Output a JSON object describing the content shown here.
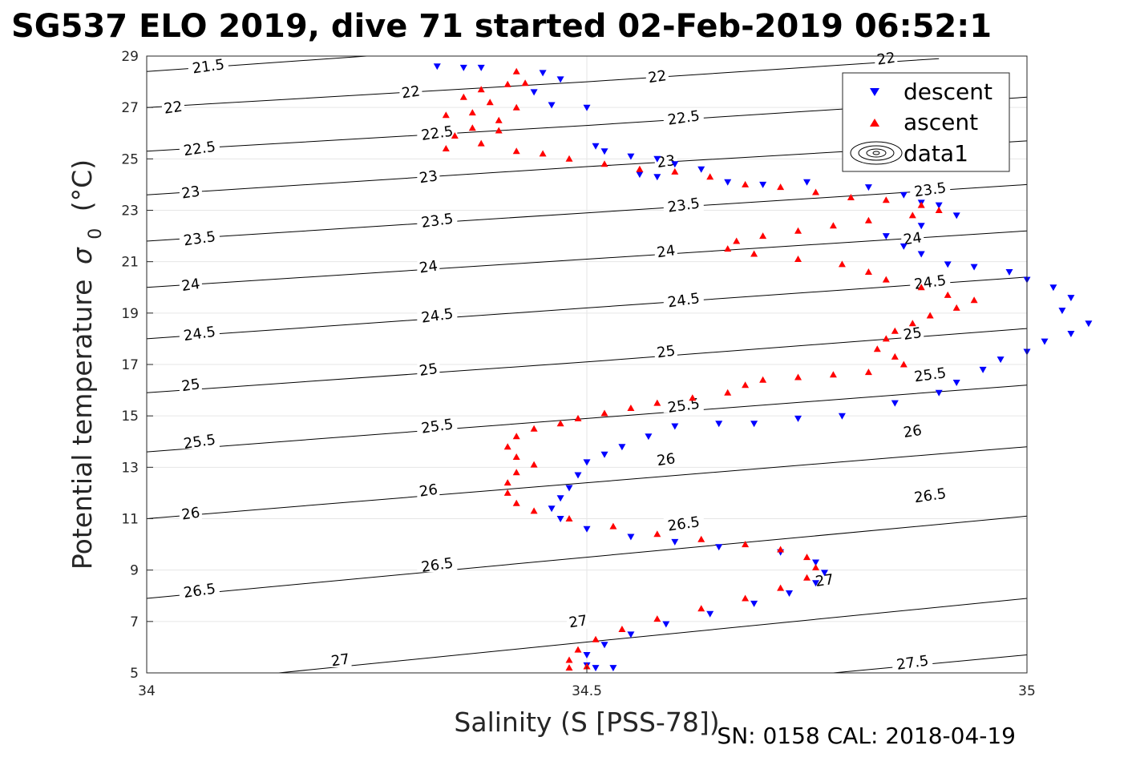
{
  "chart_data": {
    "type": "scatter",
    "title": "SG537 ELO 2019, dive 71 started 02-Feb-2019 06:52:1",
    "xlabel": "Salinity (S [PSS-78])",
    "ylabel": "Potential temperature",
    "ylabel_symbol": "σ",
    "ylabel_sub": "0",
    "ylabel_unit": "(°C)",
    "footer": "SN: 0158  CAL: 2018-04-19",
    "xlim": [
      34,
      35
    ],
    "ylim": [
      5,
      29
    ],
    "xticks": [
      34,
      34.5,
      35
    ],
    "xtick_labels": [
      "34",
      "34.5",
      "35"
    ],
    "yticks": [
      5,
      7,
      9,
      11,
      13,
      15,
      17,
      19,
      21,
      23,
      25,
      27,
      29
    ],
    "ytick_labels": [
      "5",
      "7",
      "9",
      "11",
      "13",
      "15",
      "17",
      "19",
      "21",
      "23",
      "25",
      "27",
      "29"
    ],
    "grid": true,
    "legend_position": "top-right",
    "series": [
      {
        "name": "descent",
        "marker": "triangle-down",
        "color": "#0000ff",
        "points": [
          [
            34.33,
            28.6
          ],
          [
            34.36,
            28.55
          ],
          [
            34.38,
            28.55
          ],
          [
            34.45,
            28.35
          ],
          [
            34.47,
            28.1
          ],
          [
            34.44,
            27.6
          ],
          [
            34.46,
            27.1
          ],
          [
            34.5,
            27.0
          ],
          [
            34.51,
            25.5
          ],
          [
            34.52,
            25.3
          ],
          [
            34.55,
            25.1
          ],
          [
            34.58,
            25.0
          ],
          [
            34.56,
            24.4
          ],
          [
            34.58,
            24.3
          ],
          [
            34.6,
            24.8
          ],
          [
            34.63,
            24.6
          ],
          [
            34.66,
            24.1
          ],
          [
            34.7,
            24.0
          ],
          [
            34.75,
            24.1
          ],
          [
            34.82,
            23.9
          ],
          [
            34.86,
            23.6
          ],
          [
            34.88,
            23.3
          ],
          [
            34.9,
            23.2
          ],
          [
            34.92,
            22.8
          ],
          [
            34.88,
            22.4
          ],
          [
            34.84,
            22.0
          ],
          [
            34.86,
            21.6
          ],
          [
            34.88,
            21.3
          ],
          [
            34.91,
            20.9
          ],
          [
            34.94,
            20.8
          ],
          [
            34.98,
            20.6
          ],
          [
            35.0,
            20.3
          ],
          [
            35.03,
            20.0
          ],
          [
            35.05,
            19.6
          ],
          [
            35.04,
            19.1
          ],
          [
            35.07,
            18.6
          ],
          [
            35.05,
            18.2
          ],
          [
            35.02,
            17.9
          ],
          [
            35.0,
            17.5
          ],
          [
            34.97,
            17.2
          ],
          [
            34.95,
            16.8
          ],
          [
            34.92,
            16.3
          ],
          [
            34.9,
            15.9
          ],
          [
            34.85,
            15.5
          ],
          [
            34.79,
            15.0
          ],
          [
            34.74,
            14.9
          ],
          [
            34.69,
            14.7
          ],
          [
            34.65,
            14.7
          ],
          [
            34.6,
            14.6
          ],
          [
            34.57,
            14.2
          ],
          [
            34.54,
            13.8
          ],
          [
            34.52,
            13.5
          ],
          [
            34.5,
            13.2
          ],
          [
            34.49,
            12.7
          ],
          [
            34.48,
            12.2
          ],
          [
            34.47,
            11.8
          ],
          [
            34.46,
            11.4
          ],
          [
            34.47,
            11.0
          ],
          [
            34.5,
            10.6
          ],
          [
            34.55,
            10.3
          ],
          [
            34.6,
            10.1
          ],
          [
            34.65,
            9.9
          ],
          [
            34.72,
            9.7
          ],
          [
            34.76,
            9.3
          ],
          [
            34.77,
            8.9
          ],
          [
            34.76,
            8.5
          ],
          [
            34.73,
            8.1
          ],
          [
            34.69,
            7.7
          ],
          [
            34.64,
            7.3
          ],
          [
            34.59,
            6.9
          ],
          [
            34.55,
            6.5
          ],
          [
            34.52,
            6.1
          ],
          [
            34.5,
            5.7
          ],
          [
            34.5,
            5.3
          ],
          [
            34.51,
            5.2
          ],
          [
            34.53,
            5.2
          ]
        ]
      },
      {
        "name": "ascent",
        "marker": "triangle-up",
        "color": "#ff0000",
        "points": [
          [
            34.42,
            28.4
          ],
          [
            34.41,
            27.9
          ],
          [
            34.43,
            27.95
          ],
          [
            34.38,
            27.7
          ],
          [
            34.36,
            27.4
          ],
          [
            34.39,
            27.2
          ],
          [
            34.42,
            27.0
          ],
          [
            34.37,
            26.8
          ],
          [
            34.34,
            26.7
          ],
          [
            34.4,
            26.5
          ],
          [
            34.37,
            26.2
          ],
          [
            34.4,
            26.1
          ],
          [
            34.35,
            25.9
          ],
          [
            34.38,
            25.6
          ],
          [
            34.34,
            25.4
          ],
          [
            34.42,
            25.3
          ],
          [
            34.45,
            25.2
          ],
          [
            34.48,
            25.0
          ],
          [
            34.52,
            24.8
          ],
          [
            34.56,
            24.6
          ],
          [
            34.6,
            24.5
          ],
          [
            34.64,
            24.3
          ],
          [
            34.68,
            24.0
          ],
          [
            34.72,
            23.9
          ],
          [
            34.76,
            23.7
          ],
          [
            34.8,
            23.5
          ],
          [
            34.84,
            23.4
          ],
          [
            34.88,
            23.2
          ],
          [
            34.9,
            23.0
          ],
          [
            34.87,
            22.8
          ],
          [
            34.82,
            22.6
          ],
          [
            34.78,
            22.4
          ],
          [
            34.74,
            22.2
          ],
          [
            34.7,
            22.0
          ],
          [
            34.67,
            21.8
          ],
          [
            34.66,
            21.5
          ],
          [
            34.69,
            21.3
          ],
          [
            34.74,
            21.1
          ],
          [
            34.79,
            20.9
          ],
          [
            34.82,
            20.6
          ],
          [
            34.84,
            20.3
          ],
          [
            34.88,
            20.0
          ],
          [
            34.91,
            19.7
          ],
          [
            34.94,
            19.5
          ],
          [
            34.92,
            19.2
          ],
          [
            34.89,
            18.9
          ],
          [
            34.87,
            18.6
          ],
          [
            34.85,
            18.3
          ],
          [
            34.84,
            18.0
          ],
          [
            34.83,
            17.6
          ],
          [
            34.85,
            17.3
          ],
          [
            34.86,
            17.0
          ],
          [
            34.82,
            16.7
          ],
          [
            34.78,
            16.6
          ],
          [
            34.74,
            16.5
          ],
          [
            34.7,
            16.4
          ],
          [
            34.68,
            16.2
          ],
          [
            34.66,
            15.9
          ],
          [
            34.62,
            15.7
          ],
          [
            34.58,
            15.5
          ],
          [
            34.55,
            15.3
          ],
          [
            34.52,
            15.1
          ],
          [
            34.49,
            14.9
          ],
          [
            34.47,
            14.7
          ],
          [
            34.44,
            14.5
          ],
          [
            34.42,
            14.2
          ],
          [
            34.41,
            13.8
          ],
          [
            34.42,
            13.4
          ],
          [
            34.44,
            13.1
          ],
          [
            34.42,
            12.8
          ],
          [
            34.41,
            12.4
          ],
          [
            34.41,
            12.0
          ],
          [
            34.42,
            11.6
          ],
          [
            34.44,
            11.3
          ],
          [
            34.48,
            11.0
          ],
          [
            34.53,
            10.7
          ],
          [
            34.58,
            10.4
          ],
          [
            34.63,
            10.2
          ],
          [
            34.68,
            10.0
          ],
          [
            34.72,
            9.8
          ],
          [
            34.75,
            9.5
          ],
          [
            34.76,
            9.1
          ],
          [
            34.75,
            8.7
          ],
          [
            34.72,
            8.3
          ],
          [
            34.68,
            7.9
          ],
          [
            34.63,
            7.5
          ],
          [
            34.58,
            7.1
          ],
          [
            34.54,
            6.7
          ],
          [
            34.51,
            6.3
          ],
          [
            34.49,
            5.9
          ],
          [
            34.48,
            5.5
          ],
          [
            34.48,
            5.2
          ],
          [
            34.5,
            5.25
          ]
        ]
      },
      {
        "name": "data1",
        "marker": "contour",
        "color": "#000000",
        "contours": [
          {
            "level": "21.5",
            "points": [
              [
                34.0,
                28.4
              ],
              [
                34.25,
                29.0
              ]
            ]
          },
          {
            "level": "22",
            "points": [
              [
                34.0,
                27.0
              ],
              [
                34.5,
                28.0
              ],
              [
                34.9,
                28.9
              ]
            ]
          },
          {
            "level": "22.5",
            "points": [
              [
                34.0,
                25.3
              ],
              [
                34.5,
                26.3
              ],
              [
                35.0,
                27.4
              ]
            ]
          },
          {
            "level": "23",
            "points": [
              [
                34.0,
                23.6
              ],
              [
                34.5,
                24.7
              ],
              [
                35.0,
                25.7
              ]
            ]
          },
          {
            "level": "23.5",
            "points": [
              [
                34.0,
                21.8
              ],
              [
                34.5,
                22.9
              ],
              [
                35.0,
                24.0
              ]
            ]
          },
          {
            "level": "24",
            "points": [
              [
                34.0,
                20.0
              ],
              [
                34.5,
                21.1
              ],
              [
                35.0,
                22.2
              ]
            ]
          },
          {
            "level": "24.5",
            "points": [
              [
                34.0,
                18.0
              ],
              [
                34.5,
                19.2
              ],
              [
                35.0,
                20.4
              ]
            ]
          },
          {
            "level": "25",
            "points": [
              [
                34.0,
                15.9
              ],
              [
                34.5,
                17.1
              ],
              [
                35.0,
                18.4
              ]
            ]
          },
          {
            "level": "25.5",
            "points": [
              [
                34.0,
                13.6
              ],
              [
                34.5,
                14.9
              ],
              [
                35.0,
                16.2
              ]
            ]
          },
          {
            "level": "26",
            "points": [
              [
                34.0,
                11.0
              ],
              [
                34.5,
                12.4
              ],
              [
                35.0,
                13.8
              ]
            ]
          },
          {
            "level": "26.5",
            "points": [
              [
                34.0,
                7.9
              ],
              [
                34.5,
                9.5
              ],
              [
                35.0,
                11.1
              ]
            ]
          },
          {
            "level": "27",
            "points": [
              [
                34.15,
                5.0
              ],
              [
                34.5,
                6.2
              ],
              [
                35.0,
                7.9
              ]
            ]
          },
          {
            "level": "27.5",
            "points": [
              [
                34.78,
                5.0
              ],
              [
                35.0,
                5.7
              ]
            ]
          }
        ],
        "labels": [
          {
            "text": "21.5",
            "x": 34.07,
            "y": 28.6
          },
          {
            "text": "22",
            "x": 34.03,
            "y": 27.0
          },
          {
            "text": "22",
            "x": 34.3,
            "y": 27.6
          },
          {
            "text": "22",
            "x": 34.58,
            "y": 28.2
          },
          {
            "text": "22",
            "x": 34.84,
            "y": 28.9
          },
          {
            "text": "22.5",
            "x": 34.06,
            "y": 25.4
          },
          {
            "text": "22.5",
            "x": 34.33,
            "y": 26.0
          },
          {
            "text": "22.5",
            "x": 34.61,
            "y": 26.6
          },
          {
            "text": "23",
            "x": 34.05,
            "y": 23.7
          },
          {
            "text": "23",
            "x": 34.32,
            "y": 24.3
          },
          {
            "text": "23",
            "x": 34.59,
            "y": 24.9
          },
          {
            "text": "23.5",
            "x": 34.06,
            "y": 21.9
          },
          {
            "text": "23.5",
            "x": 34.33,
            "y": 22.6
          },
          {
            "text": "23.5",
            "x": 34.61,
            "y": 23.2
          },
          {
            "text": "23.5",
            "x": 34.89,
            "y": 23.8
          },
          {
            "text": "24",
            "x": 34.05,
            "y": 20.1
          },
          {
            "text": "24",
            "x": 34.32,
            "y": 20.8
          },
          {
            "text": "24",
            "x": 34.59,
            "y": 21.4
          },
          {
            "text": "24",
            "x": 34.87,
            "y": 21.9
          },
          {
            "text": "24.5",
            "x": 34.06,
            "y": 18.2
          },
          {
            "text": "24.5",
            "x": 34.33,
            "y": 18.9
          },
          {
            "text": "24.5",
            "x": 34.61,
            "y": 19.5
          },
          {
            "text": "24.5",
            "x": 34.89,
            "y": 20.2
          },
          {
            "text": "25",
            "x": 34.05,
            "y": 16.2
          },
          {
            "text": "25",
            "x": 34.32,
            "y": 16.8
          },
          {
            "text": "25",
            "x": 34.59,
            "y": 17.5
          },
          {
            "text": "25",
            "x": 34.87,
            "y": 18.2
          },
          {
            "text": "25.5",
            "x": 34.06,
            "y": 14.0
          },
          {
            "text": "25.5",
            "x": 34.33,
            "y": 14.6
          },
          {
            "text": "25.5",
            "x": 34.61,
            "y": 15.4
          },
          {
            "text": "25.5",
            "x": 34.89,
            "y": 16.6
          },
          {
            "text": "26",
            "x": 34.05,
            "y": 11.2
          },
          {
            "text": "26",
            "x": 34.32,
            "y": 12.1
          },
          {
            "text": "26",
            "x": 34.59,
            "y": 13.3
          },
          {
            "text": "26",
            "x": 34.87,
            "y": 14.4
          },
          {
            "text": "26.5",
            "x": 34.06,
            "y": 8.2
          },
          {
            "text": "26.5",
            "x": 34.33,
            "y": 9.2
          },
          {
            "text": "26.5",
            "x": 34.61,
            "y": 10.8
          },
          {
            "text": "26.5",
            "x": 34.89,
            "y": 11.9
          },
          {
            "text": "27",
            "x": 34.22,
            "y": 5.5
          },
          {
            "text": "27",
            "x": 34.49,
            "y": 7.0
          },
          {
            "text": "27",
            "x": 34.77,
            "y": 8.6
          },
          {
            "text": "27.5",
            "x": 34.87,
            "y": 5.4
          }
        ]
      }
    ]
  }
}
